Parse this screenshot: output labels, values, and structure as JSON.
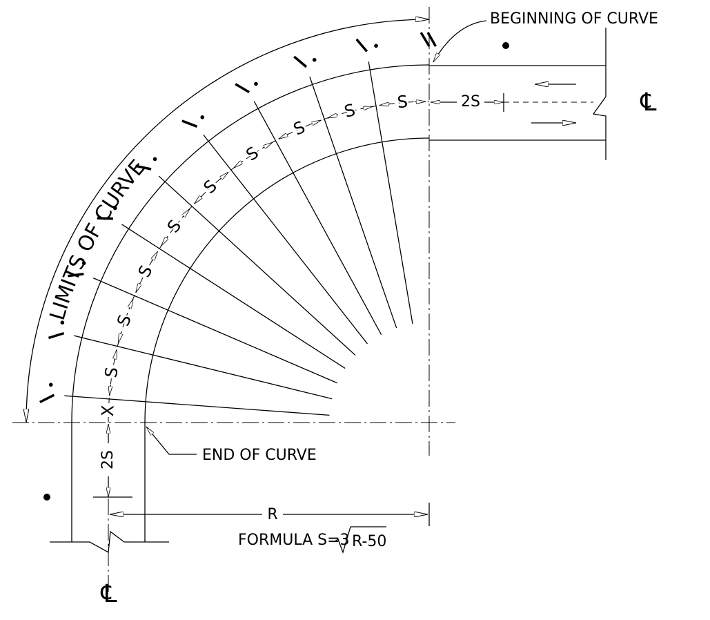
{
  "labels": {
    "limits": "LIMITS OF CURVE",
    "beginning": "BEGINNING OF CURVE",
    "end": "END OF CURVE",
    "radius": "R",
    "two_s": [
      "2S",
      "2S"
    ],
    "spacings": [
      "S",
      "S",
      "S",
      "S",
      "S",
      "S",
      "S",
      "S",
      "S",
      "X"
    ],
    "centerline": [
      "℄",
      "℄"
    ]
  },
  "formula": {
    "prefix": "FORMULA S=3",
    "radicand": "R-50"
  }
}
